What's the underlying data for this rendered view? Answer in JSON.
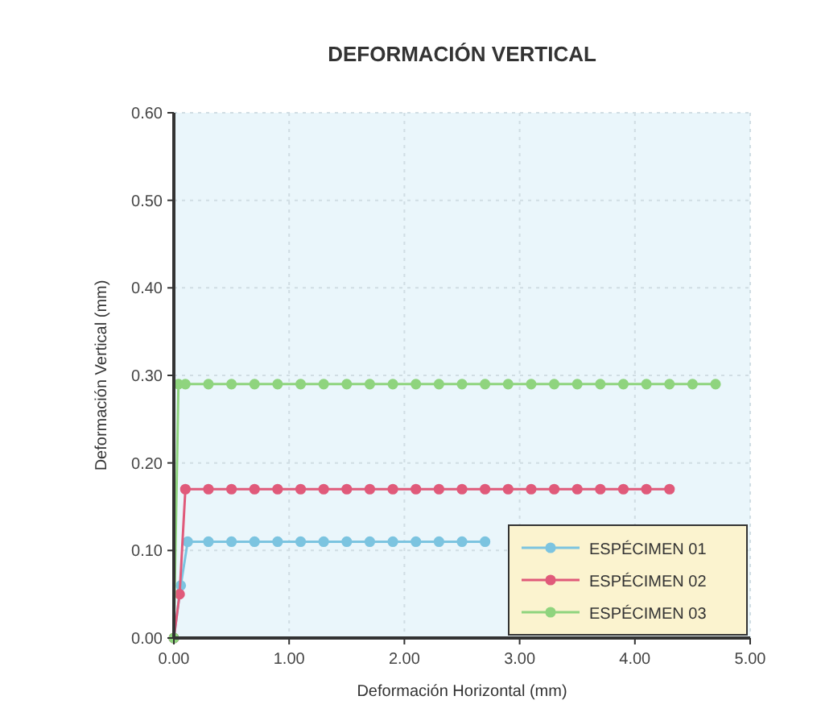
{
  "chart_data": {
    "type": "line",
    "title": "DEFORMACIÓN VERTICAL",
    "xlabel": "Deformación Horizontal  (mm)",
    "ylabel": "Deformación Vertical  (mm)",
    "xlim": [
      0,
      5
    ],
    "xticks": [
      {
        "value": 0,
        "label": "0.00"
      },
      {
        "value": 1,
        "label": "1.00"
      },
      {
        "value": 2,
        "label": "2.00"
      },
      {
        "value": 3,
        "label": "3.00"
      },
      {
        "value": 4,
        "label": "4.00"
      },
      {
        "value": 5,
        "label": "5.00"
      }
    ],
    "ylim": [
      0,
      0.6
    ],
    "yticks": [
      {
        "value": 0,
        "label": "0.00"
      },
      {
        "value": 0.1,
        "label": "0.10"
      },
      {
        "value": 0.2,
        "label": "0.20"
      },
      {
        "value": 0.3,
        "label": "0.30"
      },
      {
        "value": 0.4,
        "label": "0.40"
      },
      {
        "value": 0.5,
        "label": "0.50"
      },
      {
        "value": 0.6,
        "label": "0.60"
      }
    ],
    "grid": true,
    "legend": "bottom right",
    "marker": "circle",
    "line_style": "solid",
    "series": [
      {
        "name": "ESPÉCIMEN 01",
        "color": "#7cc4e0",
        "x": [
          0,
          0.06,
          0.12,
          0.3,
          0.5,
          0.7,
          0.9,
          1.1,
          1.3,
          1.5,
          1.7,
          1.9,
          2.1,
          2.3,
          2.5,
          2.7
        ],
        "values": [
          0,
          0.06,
          0.11,
          0.11,
          0.11,
          0.11,
          0.11,
          0.11,
          0.11,
          0.11,
          0.11,
          0.11,
          0.11,
          0.11,
          0.11,
          0.11
        ]
      },
      {
        "name": "ESPÉCIMEN 02",
        "color": "#e05a7a",
        "x": [
          0,
          0.05,
          0.1,
          0.3,
          0.5,
          0.7,
          0.9,
          1.1,
          1.3,
          1.5,
          1.7,
          1.9,
          2.1,
          2.3,
          2.5,
          2.7,
          2.9,
          3.1,
          3.3,
          3.5,
          3.7,
          3.9,
          4.1,
          4.3
        ],
        "values": [
          0,
          0.05,
          0.17,
          0.17,
          0.17,
          0.17,
          0.17,
          0.17,
          0.17,
          0.17,
          0.17,
          0.17,
          0.17,
          0.17,
          0.17,
          0.17,
          0.17,
          0.17,
          0.17,
          0.17,
          0.17,
          0.17,
          0.17,
          0.17
        ]
      },
      {
        "name": "ESPÉCIMEN 03",
        "color": "#8fd47e",
        "x": [
          0,
          0.04,
          0.1,
          0.3,
          0.5,
          0.7,
          0.9,
          1.1,
          1.3,
          1.5,
          1.7,
          1.9,
          2.1,
          2.3,
          2.5,
          2.7,
          2.9,
          3.1,
          3.3,
          3.5,
          3.7,
          3.9,
          4.1,
          4.3,
          4.5,
          4.7
        ],
        "values": [
          0,
          0.29,
          0.29,
          0.29,
          0.29,
          0.29,
          0.29,
          0.29,
          0.29,
          0.29,
          0.29,
          0.29,
          0.29,
          0.29,
          0.29,
          0.29,
          0.29,
          0.29,
          0.29,
          0.29,
          0.29,
          0.29,
          0.29,
          0.29,
          0.29,
          0.29
        ]
      }
    ]
  }
}
